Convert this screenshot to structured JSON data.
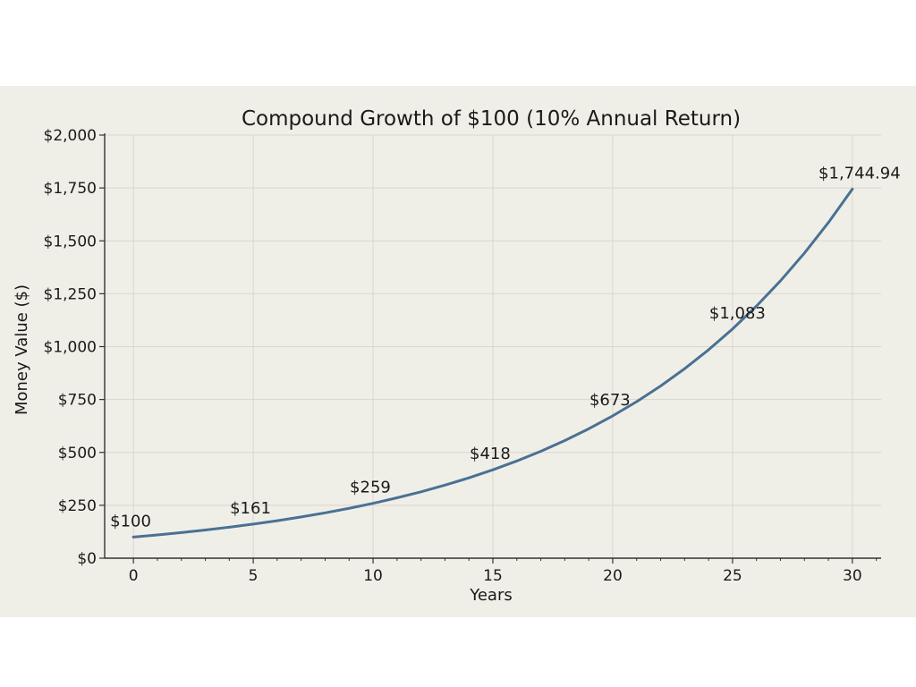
{
  "chart_data": {
    "type": "line",
    "title": "Compound Growth of $100 (10% Annual Return)",
    "xlabel": "Years",
    "ylabel": "Money Value ($)",
    "xlim": [
      -1.2,
      31.2
    ],
    "ylim": [
      0,
      2000
    ],
    "x_ticks": [
      0,
      5,
      10,
      15,
      20,
      25,
      30
    ],
    "x_tick_labels": [
      "0",
      "5",
      "10",
      "15",
      "20",
      "25",
      "30"
    ],
    "y_ticks": [
      0,
      250,
      500,
      750,
      1000,
      1250,
      1500,
      1750,
      2000
    ],
    "y_tick_labels": [
      "$0",
      "$250",
      "$500",
      "$750",
      "$1,000",
      "$1,250",
      "$1,500",
      "$1,750",
      "$2,000"
    ],
    "grid": true,
    "series": [
      {
        "color": "#4a7194",
        "x": [
          0,
          1,
          2,
          3,
          4,
          5,
          6,
          7,
          8,
          9,
          10,
          11,
          12,
          13,
          14,
          15,
          16,
          17,
          18,
          19,
          20,
          21,
          22,
          23,
          24,
          25,
          26,
          27,
          28,
          29,
          30
        ],
        "values": [
          100,
          110,
          121,
          133.1,
          146.41,
          161.05,
          177.16,
          194.87,
          214.36,
          235.79,
          259.37,
          285.31,
          313.84,
          345.23,
          379.75,
          417.72,
          459.5,
          505.45,
          555.99,
          611.59,
          672.75,
          740.02,
          814.03,
          895.43,
          984.97,
          1083.47,
          1191.82,
          1311,
          1442.1,
          1586.31,
          1744.94
        ]
      }
    ],
    "annotations": [
      {
        "x": 0,
        "y": 100,
        "text": "$100"
      },
      {
        "x": 5,
        "y": 161.05,
        "text": "$161"
      },
      {
        "x": 10,
        "y": 259.37,
        "text": "$259"
      },
      {
        "x": 15,
        "y": 417.72,
        "text": "$418"
      },
      {
        "x": 20,
        "y": 672.75,
        "text": "$673"
      },
      {
        "x": 25,
        "y": 1083.47,
        "text": "$1,083"
      },
      {
        "x": 30,
        "y": 1744.94,
        "text": "$1,744.94"
      }
    ],
    "colors": {
      "background": "#f0efe7",
      "grid": "#dcd4ce",
      "axis": "#333333"
    }
  }
}
